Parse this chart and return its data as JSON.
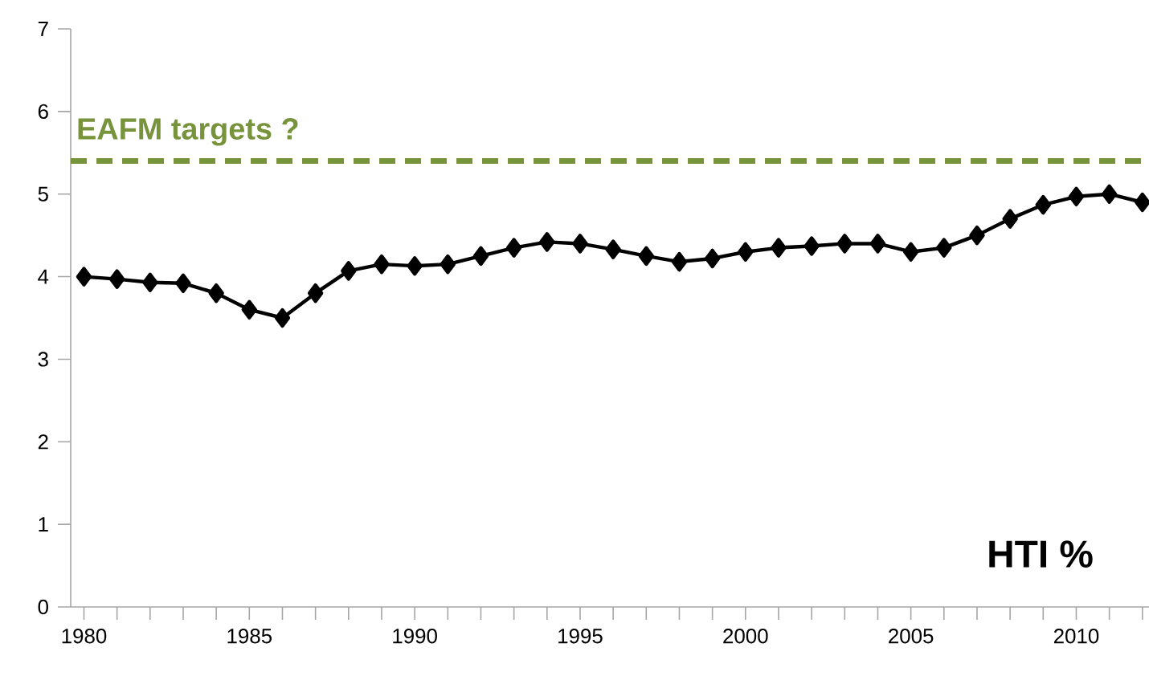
{
  "chart_data": {
    "type": "line",
    "x": [
      1980,
      1981,
      1982,
      1983,
      1984,
      1985,
      1986,
      1987,
      1988,
      1989,
      1990,
      1991,
      1992,
      1993,
      1994,
      1995,
      1996,
      1997,
      1998,
      1999,
      2000,
      2001,
      2002,
      2003,
      2004,
      2005,
      2006,
      2007,
      2008,
      2009,
      2010,
      2011,
      2012
    ],
    "series": [
      {
        "color": "#000000",
        "values": [
          4.0,
          3.97,
          3.93,
          3.92,
          3.8,
          3.6,
          3.5,
          3.8,
          4.07,
          4.15,
          4.13,
          4.15,
          4.25,
          4.35,
          4.42,
          4.4,
          4.33,
          4.25,
          4.18,
          4.22,
          4.3,
          4.35,
          4.37,
          4.4,
          4.4,
          4.3,
          4.35,
          4.5,
          4.7,
          4.87,
          4.97,
          5.0,
          4.9
        ]
      }
    ],
    "marker": "diamond",
    "line_style": "solid",
    "grid": false,
    "xlim": [
      1979.6,
      2012.2
    ],
    "ylim": [
      0,
      7
    ],
    "xticks": [
      1980,
      {
        "value": 1981,
        "label": null
      },
      {
        "value": 1982,
        "label": null
      },
      {
        "value": 1983,
        "label": null
      },
      {
        "value": 1984,
        "label": null
      },
      1985,
      {
        "value": 1986,
        "label": null
      },
      {
        "value": 1987,
        "label": null
      },
      {
        "value": 1988,
        "label": null
      },
      {
        "value": 1989,
        "label": null
      },
      1990,
      {
        "value": 1991,
        "label": null
      },
      {
        "value": 1992,
        "label": null
      },
      {
        "value": 1993,
        "label": null
      },
      {
        "value": 1994,
        "label": null
      },
      1995,
      {
        "value": 1996,
        "label": null
      },
      {
        "value": 1997,
        "label": null
      },
      {
        "value": 1998,
        "label": null
      },
      {
        "value": 1999,
        "label": null
      },
      2000,
      {
        "value": 2001,
        "label": null
      },
      {
        "value": 2002,
        "label": null
      },
      {
        "value": 2003,
        "label": null
      },
      {
        "value": 2004,
        "label": null
      },
      2005,
      {
        "value": 2006,
        "label": null
      },
      {
        "value": 2007,
        "label": null
      },
      {
        "value": 2008,
        "label": null
      },
      {
        "value": 2009,
        "label": null
      },
      2010,
      {
        "value": 2011,
        "label": null
      },
      {
        "value": 2012,
        "label": null
      }
    ],
    "yticks": [
      0,
      1,
      2,
      3,
      4,
      5,
      6,
      7
    ],
    "ref_lines": [
      {
        "axis": "y",
        "value": 5.4,
        "label": "EAFM targets ?",
        "color": "#77933c",
        "line_style": "dashed"
      }
    ],
    "annotations": [
      "HTI %"
    ]
  }
}
